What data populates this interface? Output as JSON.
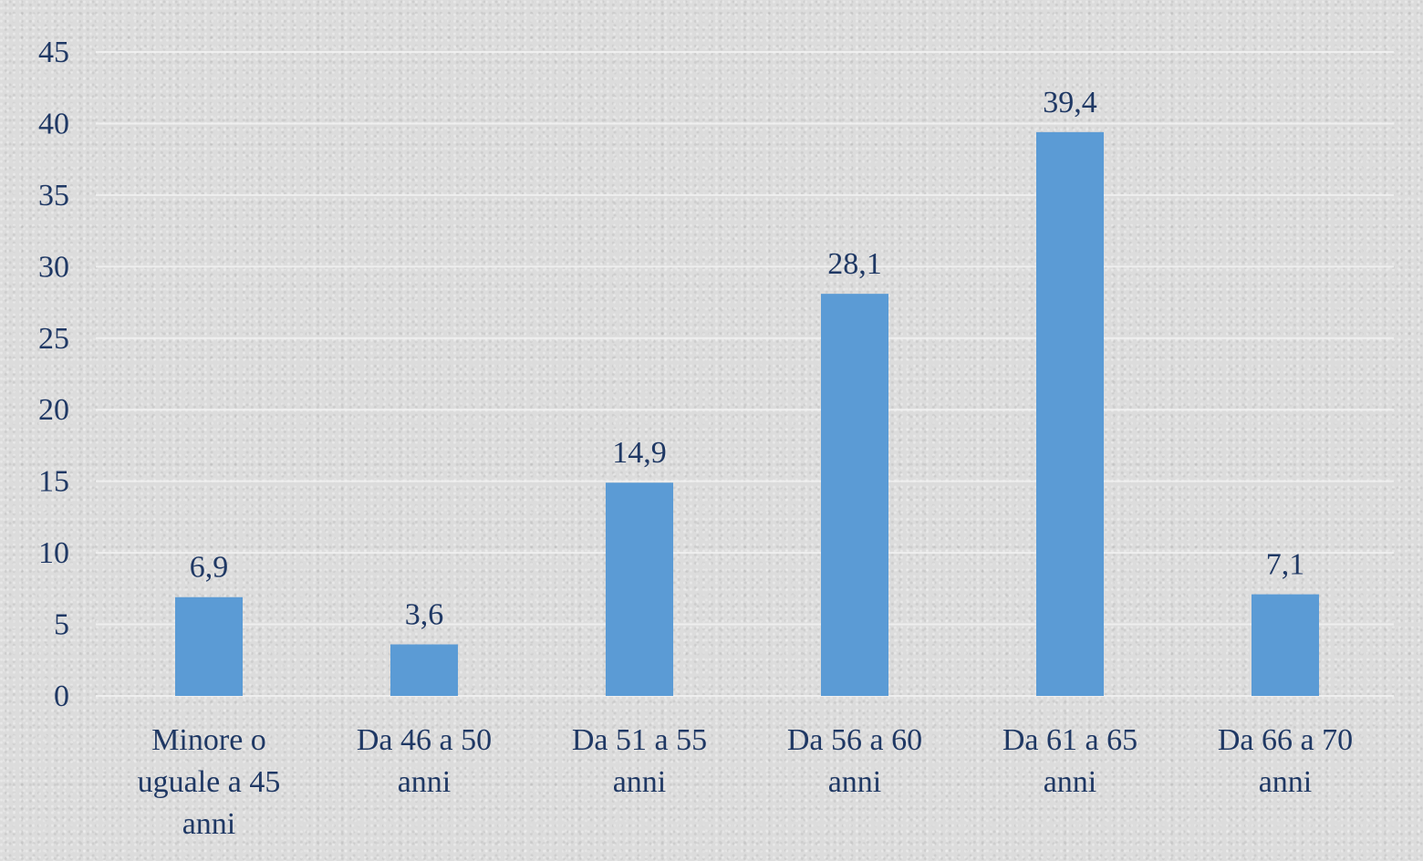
{
  "chart_data": {
    "type": "bar",
    "categories": [
      [
        "Minore o",
        "uguale a 45",
        "anni"
      ],
      [
        "Da 46 a 50",
        "anni"
      ],
      [
        "Da 51 a 55",
        "anni"
      ],
      [
        "Da 56 a 60",
        "anni"
      ],
      [
        "Da 61 a 65",
        "anni"
      ],
      [
        "Da 66 a 70",
        "anni"
      ]
    ],
    "values": [
      6.9,
      3.6,
      14.9,
      28.1,
      39.4,
      7.1
    ],
    "data_labels": [
      "6,9",
      "3,6",
      "14,9",
      "28,1",
      "39,4",
      "7,1"
    ],
    "yticks": [
      "0",
      "5",
      "10",
      "15",
      "20",
      "25",
      "30",
      "35",
      "40",
      "45"
    ],
    "ylim": [
      0,
      45
    ],
    "grid": true,
    "bar_color": "#5b9bd5",
    "text_color": "#1f3864"
  }
}
